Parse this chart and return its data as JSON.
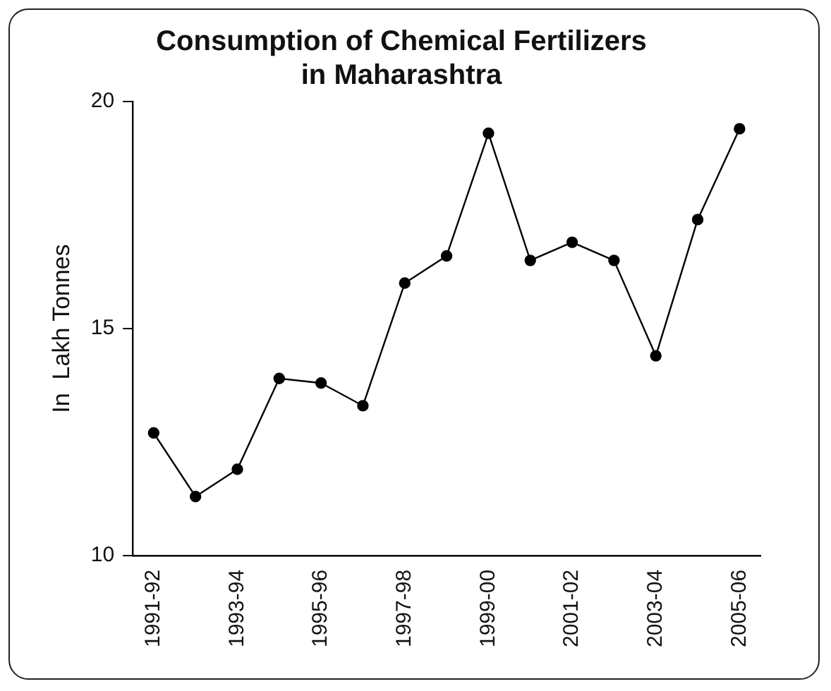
{
  "chart_data": {
    "type": "line",
    "title": "Consumption of Chemical Fertilizers\nin Maharashtra",
    "ylabel": "In  Lakh Tonnes",
    "categories": [
      "1991-92",
      null,
      "1993-94",
      null,
      "1995-96",
      null,
      "1997-98",
      null,
      "1999-00",
      null,
      "2001-02",
      null,
      "2003-04",
      null,
      "2005-06"
    ],
    "series": [
      {
        "color": "#000000",
        "values": [
          12.7,
          11.3,
          11.9,
          13.9,
          13.8,
          13.3,
          16.0,
          16.6,
          19.3,
          16.5,
          16.9,
          16.5,
          14.4,
          17.4,
          19.4
        ]
      }
    ],
    "ylim": [
      10,
      20
    ],
    "yticks": [
      10,
      15,
      20
    ],
    "grid": false,
    "legend": false,
    "marker": "circle",
    "line_style": "solid"
  }
}
